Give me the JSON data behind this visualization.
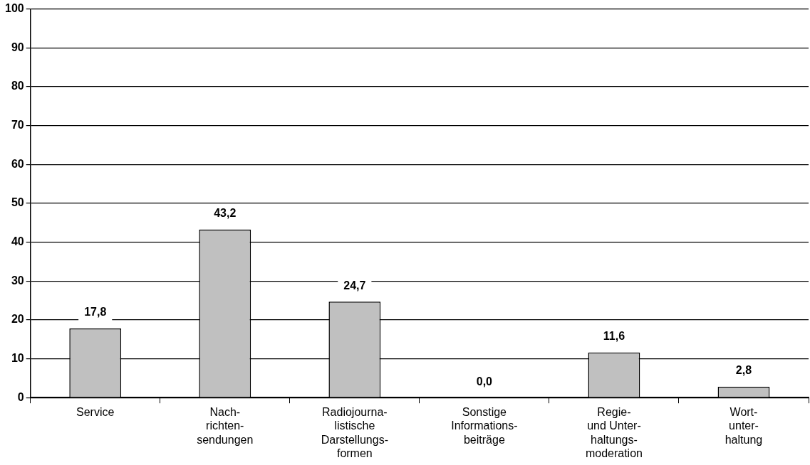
{
  "chart_data": {
    "type": "bar",
    "categories": [
      "Service",
      "Nach-\nrichten-\nsendungen",
      "Radiojourna-\nlistische\nDarstellungs-\nformen",
      "Sonstige\nInformations-\nbeiträge",
      "Regie-\nund Unter-\nhaltungs-\nmoderation",
      "Wort-\nunter-\nhaltung"
    ],
    "values": [
      17.8,
      43.2,
      24.7,
      0.0,
      11.6,
      2.8
    ],
    "color": "#c0c0c0",
    "ylim": [
      0,
      100
    ],
    "yticks": [
      0,
      10,
      20,
      30,
      40,
      50,
      60,
      70,
      80,
      90,
      100
    ],
    "grid": "y",
    "legend": false,
    "value_labels": [
      "17,8",
      "43,2",
      "24,7",
      "0,0",
      "11,6",
      "2,8"
    ]
  }
}
